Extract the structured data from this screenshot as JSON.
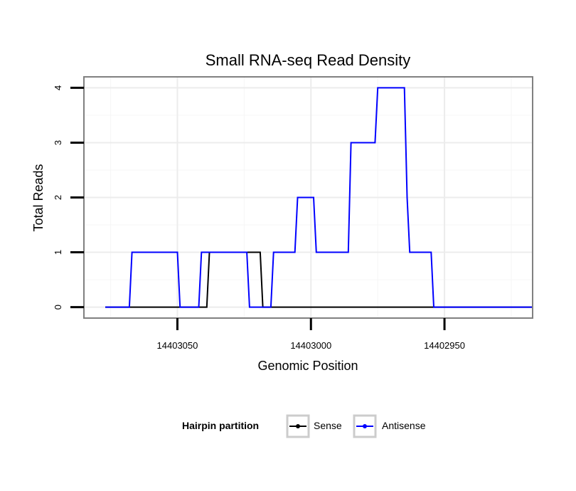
{
  "chart_data": {
    "type": "line",
    "title": "Small RNA-seq Read Density",
    "xlabel": "Genomic Position",
    "ylabel": "Total Reads",
    "xlim": [
      14403085,
      14402917
    ],
    "ylim": [
      -0.2,
      4.2
    ],
    "x_reversed": true,
    "x_ticks": [
      14403050,
      14403000,
      14402950
    ],
    "x_tick_labels": [
      "14403050",
      "14403000",
      "14402950"
    ],
    "y_ticks": [
      0,
      1,
      2,
      3,
      4
    ],
    "y_tick_labels": [
      "0",
      "1",
      "2",
      "3",
      "4"
    ],
    "grid": true,
    "legend": {
      "title": "Hairpin partition",
      "position": "bottom",
      "entries": [
        {
          "name": "Sense",
          "color": "#000000"
        },
        {
          "name": "Antisense",
          "color": "#0000ff"
        }
      ]
    },
    "series": [
      {
        "name": "Sense",
        "color": "#000000",
        "x": [
          14403077,
          14403039,
          14403038,
          14403019,
          14403018,
          14402917
        ],
        "y": [
          0,
          0,
          1,
          1,
          0,
          0
        ]
      },
      {
        "name": "Antisense",
        "color": "#0000ff",
        "x": [
          14403077,
          14403068,
          14403067,
          14403050,
          14403049,
          14403042,
          14403041,
          14403024,
          14403023,
          14403015,
          14403014,
          14403006,
          14403005,
          14402999,
          14402998,
          14402986,
          14402985,
          14402976,
          14402975,
          14402965,
          14402964,
          14402963,
          14402962,
          14402955,
          14402954,
          14402917
        ],
        "y": [
          0,
          0,
          1,
          1,
          0,
          0,
          1,
          1,
          0,
          0,
          1,
          1,
          2,
          2,
          1,
          1,
          3,
          3,
          4,
          4,
          2,
          1,
          1,
          1,
          0,
          0
        ]
      }
    ]
  }
}
